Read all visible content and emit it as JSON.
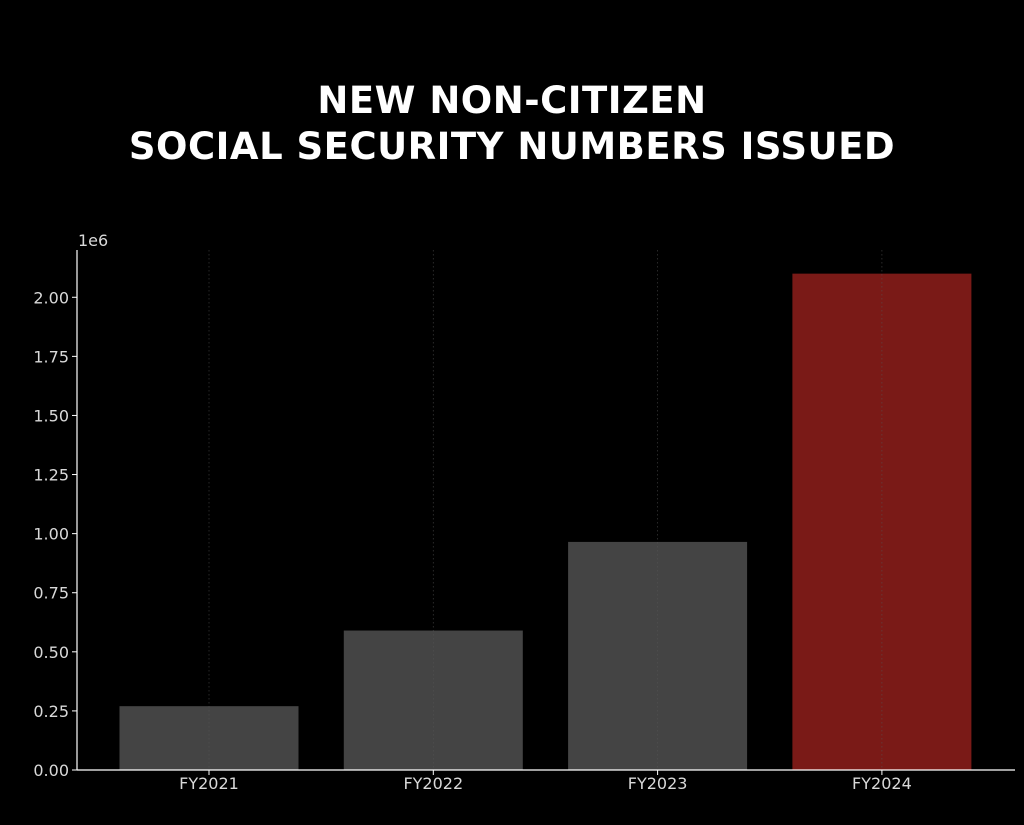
{
  "title": {
    "line1": "NEW NON-CITIZEN",
    "line2": "SOCIAL SECURITY NUMBERS ISSUED"
  },
  "colors": {
    "background": "#000000",
    "bar_default": "#444444",
    "bar_highlight": "#7a1a17",
    "text": "#ffffff",
    "tick_text": "#d9d9d9",
    "axis": "#ffffff",
    "grid": "#555555"
  },
  "chart_data": {
    "type": "bar",
    "title": "NEW NON-CITIZEN SOCIAL SECURITY NUMBERS ISSUED",
    "xlabel": "",
    "ylabel": "",
    "categories": [
      "FY2021",
      "FY2022",
      "FY2023",
      "FY2024"
    ],
    "values": [
      270000,
      590000,
      965000,
      2100000
    ],
    "highlight_index": 3,
    "ylim": [
      0,
      2200000
    ],
    "y_ticks": [
      0,
      250000,
      500000,
      750000,
      1000000,
      1250000,
      1500000,
      1750000,
      2000000
    ],
    "y_tick_labels": [
      "0.00",
      "0.25",
      "0.50",
      "0.75",
      "1.00",
      "1.25",
      "1.50",
      "1.75",
      "2.00"
    ],
    "offset_label": "1e6",
    "grid": "vertical dotted at category centers",
    "legend": "none"
  }
}
